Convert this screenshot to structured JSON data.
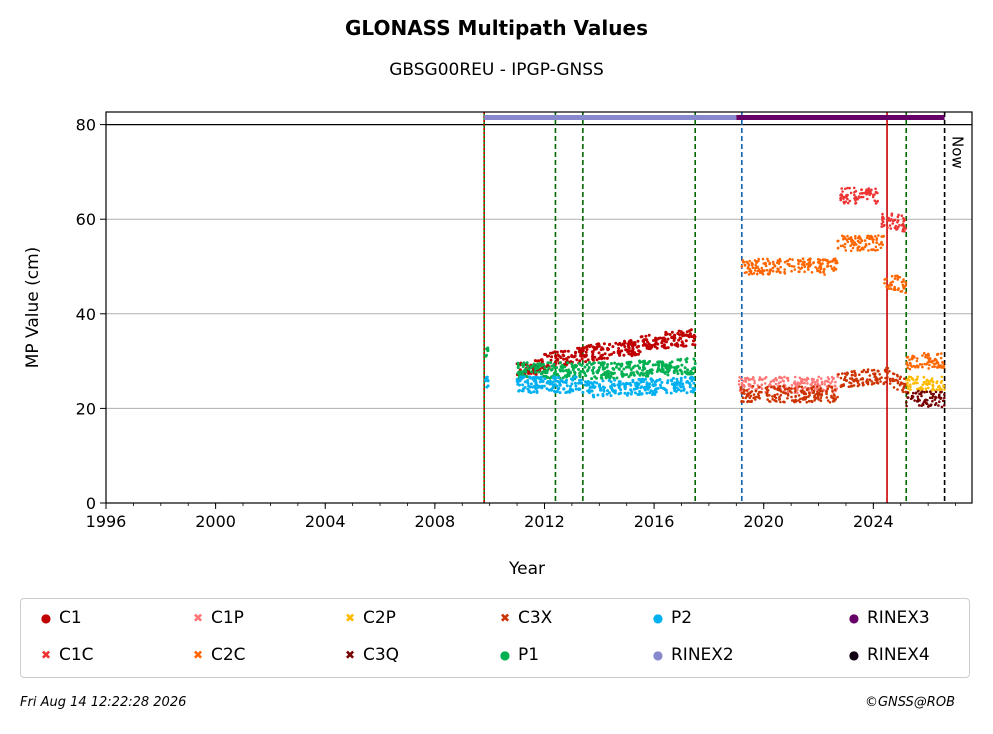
{
  "chart_data": {
    "type": "scatter",
    "title": "GLONASS Multipath Values",
    "subtitle": "GBSG00REU - IPGP-GNSS",
    "xlabel": "Year",
    "ylabel": "MP Value (cm)",
    "xlim": [
      1996,
      2027.6
    ],
    "ylim": [
      0,
      80
    ],
    "xticks": [
      "1996",
      "2000",
      "2004",
      "2008",
      "2012",
      "2016",
      "2020",
      "2024"
    ],
    "yticks": [
      "0",
      "20",
      "40",
      "60",
      "80"
    ],
    "grid": "horizontal",
    "legend_position": "bottom",
    "now_label": "Now",
    "series": [
      {
        "name": "C1",
        "color": "#c00000",
        "marker": "dot",
        "segments": [
          {
            "x0": 2011.0,
            "x1": 2012.0,
            "y0": 28,
            "y1": 29
          },
          {
            "x0": 2012.0,
            "x1": 2014.0,
            "y0": 30,
            "y1": 32
          },
          {
            "x0": 2014.0,
            "x1": 2015.5,
            "y0": 32,
            "y1": 33
          },
          {
            "x0": 2015.5,
            "x1": 2017.5,
            "y0": 34,
            "y1": 35
          }
        ]
      },
      {
        "name": "C1C",
        "color": "#ee3333",
        "marker": "x",
        "segments": [
          {
            "x0": 2022.8,
            "x1": 2024.2,
            "y0": 65,
            "y1": 65
          },
          {
            "x0": 2024.3,
            "x1": 2025.2,
            "y0": 60,
            "y1": 59
          }
        ]
      },
      {
        "name": "C1P",
        "color": "#ff7777",
        "marker": "x",
        "segments": [
          {
            "x0": 2019.1,
            "x1": 2022.7,
            "y0": 25,
            "y1": 25
          }
        ]
      },
      {
        "name": "C2C",
        "color": "#ff6600",
        "marker": "x",
        "segments": [
          {
            "x0": 2019.2,
            "x1": 2022.7,
            "y0": 50,
            "y1": 50
          },
          {
            "x0": 2022.7,
            "x1": 2024.4,
            "y0": 55,
            "y1": 55
          },
          {
            "x0": 2024.4,
            "x1": 2025.2,
            "y0": 47,
            "y1": 46
          },
          {
            "x0": 2025.2,
            "x1": 2026.6,
            "y0": 30,
            "y1": 30
          }
        ]
      },
      {
        "name": "C2P",
        "color": "#ffbb00",
        "marker": "x",
        "segments": [
          {
            "x0": 2025.2,
            "x1": 2026.6,
            "y0": 25,
            "y1": 25
          }
        ]
      },
      {
        "name": "C3Q",
        "color": "#770000",
        "marker": "x",
        "segments": [
          {
            "x0": 2025.2,
            "x1": 2026.6,
            "y0": 22,
            "y1": 22
          }
        ]
      },
      {
        "name": "C3X",
        "color": "#cc3300",
        "marker": "x",
        "segments": [
          {
            "x0": 2019.1,
            "x1": 2022.7,
            "y0": 23,
            "y1": 23
          },
          {
            "x0": 2022.7,
            "x1": 2024.6,
            "y0": 26,
            "y1": 27
          },
          {
            "x0": 2024.6,
            "x1": 2025.2,
            "y0": 26,
            "y1": 25
          }
        ]
      },
      {
        "name": "P1",
        "color": "#00b050",
        "marker": "dot",
        "segments": [
          {
            "x0": 2009.85,
            "x1": 2009.95,
            "y0": 32,
            "y1": 32
          },
          {
            "x0": 2011.0,
            "x1": 2014.5,
            "y0": 28,
            "y1": 28
          },
          {
            "x0": 2014.5,
            "x1": 2017.5,
            "y0": 28,
            "y1": 29
          }
        ]
      },
      {
        "name": "P2",
        "color": "#00b0f0",
        "marker": "dot",
        "segments": [
          {
            "x0": 2009.85,
            "x1": 2009.95,
            "y0": 25,
            "y1": 25
          },
          {
            "x0": 2011.0,
            "x1": 2013.5,
            "y0": 25,
            "y1": 25
          },
          {
            "x0": 2013.5,
            "x1": 2017.5,
            "y0": 24,
            "y1": 25
          }
        ]
      }
    ],
    "rinex_bars": [
      {
        "name": "RINEX2",
        "color": "#8888cc",
        "x0": 2009.8,
        "x1": 2019.0,
        "y": 81.5
      },
      {
        "name": "RINEX3",
        "color": "#660066",
        "x0": 2019.0,
        "x1": 2026.6,
        "y": 81.5
      },
      {
        "name": "RINEX4",
        "color": "#110011",
        "x0": null,
        "x1": null,
        "y": 81.5
      }
    ],
    "vertical_lines": [
      {
        "x": 2009.8,
        "color": "#008800",
        "style": "solid"
      },
      {
        "x": 2009.8,
        "color": "#cc0000",
        "style": "dotted"
      },
      {
        "x": 2012.4,
        "color": "#006600",
        "style": "dashed"
      },
      {
        "x": 2013.4,
        "color": "#006600",
        "style": "dashed"
      },
      {
        "x": 2017.5,
        "color": "#006600",
        "style": "dashed"
      },
      {
        "x": 2019.2,
        "color": "#1060b0",
        "style": "dashed"
      },
      {
        "x": 2024.5,
        "color": "#cc0000",
        "style": "solid"
      },
      {
        "x": 2025.2,
        "color": "#006600",
        "style": "dashed"
      },
      {
        "x": 2026.6,
        "color": "#000000",
        "style": "dashed"
      }
    ]
  },
  "legend": [
    {
      "label": "C1",
      "color": "#c00000",
      "marker": "●"
    },
    {
      "label": "C1C",
      "color": "#ee3333",
      "marker": "✖"
    },
    {
      "label": "C1P",
      "color": "#ff7777",
      "marker": "✖"
    },
    {
      "label": "C2C",
      "color": "#ff6600",
      "marker": "✖"
    },
    {
      "label": "C2P",
      "color": "#ffbb00",
      "marker": "✖"
    },
    {
      "label": "C3Q",
      "color": "#770000",
      "marker": "✖"
    },
    {
      "label": "C3X",
      "color": "#cc3300",
      "marker": "✖"
    },
    {
      "label": "P1",
      "color": "#00b050",
      "marker": "●"
    },
    {
      "label": "P2",
      "color": "#00b0f0",
      "marker": "●"
    },
    {
      "label": "RINEX2",
      "color": "#8888cc",
      "marker": "●"
    },
    {
      "label": "RINEX3",
      "color": "#660066",
      "marker": "●"
    },
    {
      "label": "RINEX4",
      "color": "#110011",
      "marker": "●"
    }
  ],
  "footer": {
    "timestamp": "Fri Aug 14 12:22:28 2026",
    "copyright": "©GNSS@ROB"
  }
}
